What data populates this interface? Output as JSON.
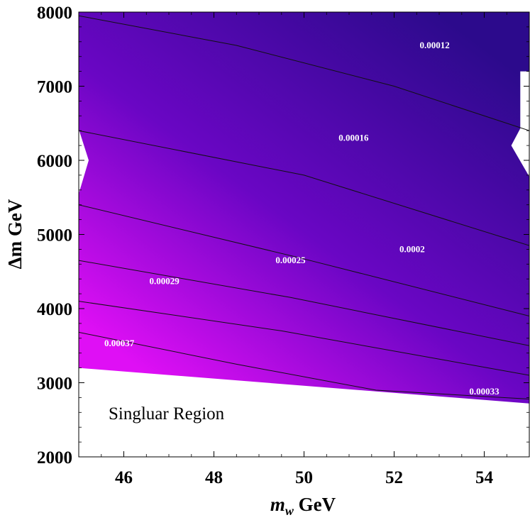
{
  "chart_data": {
    "type": "contour",
    "xlabel_main": "m",
    "xlabel_sub": "w",
    "xlabel_unit": " GeV",
    "ylabel": "Δm GeV",
    "xlim": [
      45,
      55
    ],
    "ylim": [
      2000,
      8000
    ],
    "x_ticks": [
      46,
      48,
      50,
      52,
      54
    ],
    "y_ticks": [
      2000,
      3000,
      4000,
      5000,
      6000,
      7000,
      8000
    ],
    "singular_region_label": "Singluar Region",
    "singular_boundary": [
      [
        45,
        3200
      ],
      [
        55,
        2720
      ]
    ],
    "colors": {
      "low": "#2c0a8c",
      "high": "#df0ff5",
      "contour_line": "#111111"
    },
    "contours": [
      {
        "level": "0.00012",
        "points": [
          [
            45,
            7950
          ],
          [
            48.5,
            7550
          ],
          [
            52,
            7000
          ],
          [
            55,
            6400
          ]
        ],
        "label": "0.00012",
        "label_at": [
          52.9,
          7550
        ]
      },
      {
        "level": "0.00016",
        "points": [
          [
            45,
            6400
          ],
          [
            50,
            5800
          ],
          [
            55,
            4850
          ]
        ],
        "label": "0.00016",
        "label_at": [
          51.1,
          6300
        ]
      },
      {
        "level": "0.0002",
        "points": [
          [
            45,
            5400
          ],
          [
            49.8,
            4700
          ],
          [
            55,
            3900
          ]
        ],
        "label": "0.0002",
        "label_at": [
          52.4,
          4800
        ]
      },
      {
        "level": "0.00025",
        "points": [
          [
            45,
            4650
          ],
          [
            49.7,
            4150
          ],
          [
            55,
            3500
          ]
        ],
        "label": "0.00025",
        "label_at": [
          49.7,
          4650
        ]
      },
      {
        "level": "0.00029",
        "points": [
          [
            45,
            4100
          ],
          [
            49.5,
            3700
          ],
          [
            55,
            3100
          ]
        ],
        "label": "0.00029",
        "label_at": [
          46.9,
          4370
        ]
      },
      {
        "level": "0.00033",
        "points": [
          [
            45,
            3680
          ],
          [
            48.5,
            3250
          ],
          [
            51.6,
            2900
          ],
          [
            55,
            2780
          ]
        ],
        "label": "0.00033",
        "label_at": [
          54.0,
          2880
        ]
      },
      {
        "level": "0.00037",
        "points": [],
        "label": "0.00037",
        "label_at": [
          45.9,
          3530
        ]
      }
    ]
  }
}
